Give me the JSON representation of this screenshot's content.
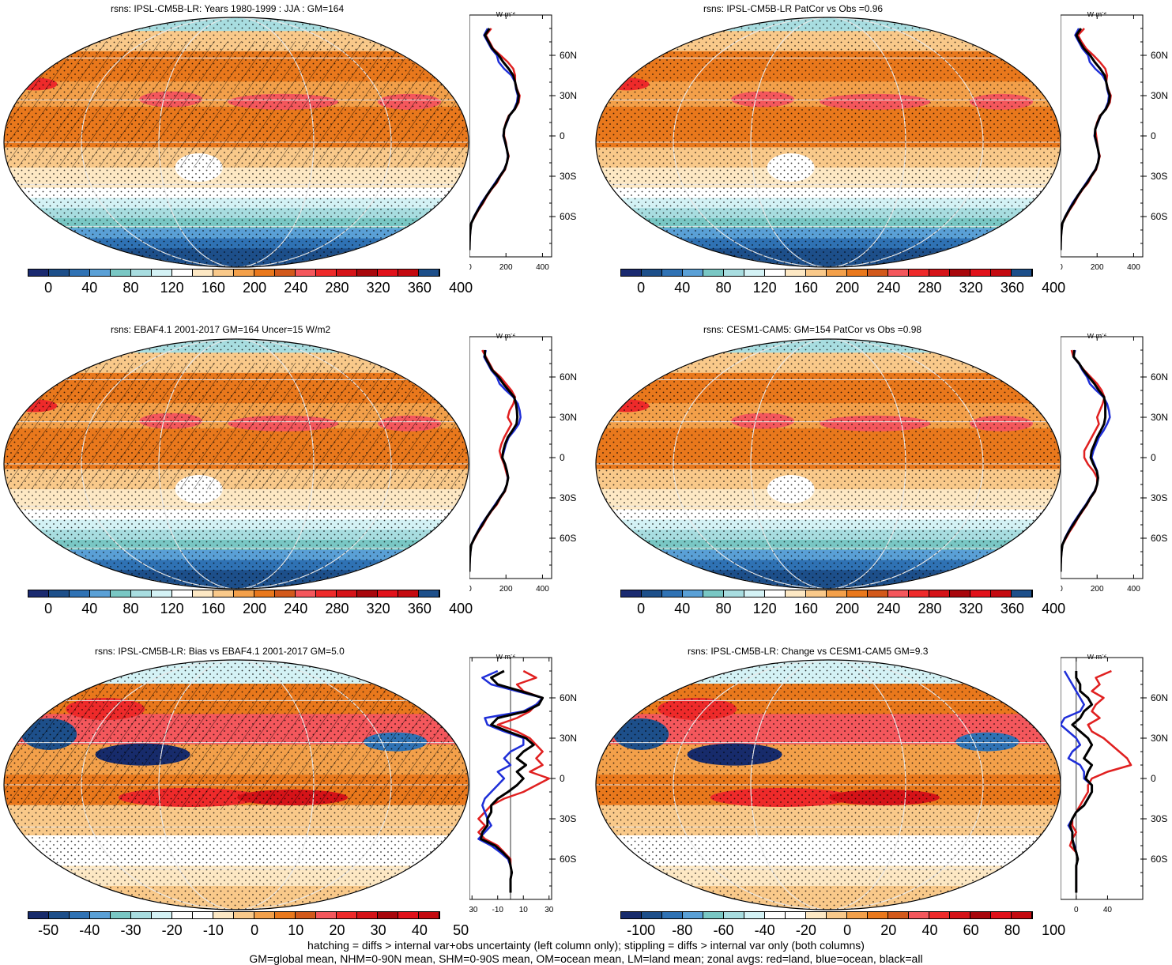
{
  "footer": {
    "line1": "hatching = diffs > internal var+obs uncertainty (left column only); stippling = diffs > internal var only (both columns)",
    "line2": "GM=global mean, NHM=0-90N mean, SHM=0-90S mean, OM=ocean mean, LM=land mean; zonal avgs: red=land, blue=ocean, black=all"
  },
  "colors": {
    "abs_scale": [
      "#1a2a70",
      "#1d4f8a",
      "#2f72b4",
      "#5aa0d6",
      "#79c7c4",
      "#a8dde0",
      "#d4f2f5",
      "#ffffff",
      "#fde8c4",
      "#f9c98a",
      "#f3a04a",
      "#e9781c",
      "#d2591b",
      "#f4575c",
      "#ee2a2a",
      "#d51318",
      "#a8070c",
      "#e1111a",
      "#c40a10",
      "#1d4f8a"
    ],
    "diff_scale": [
      "#172b6b",
      "#1d4f8a",
      "#2f72b4",
      "#5aa0d6",
      "#79c7c4",
      "#a8dde0",
      "#d4f2f5",
      "#ffffff",
      "#ffffff",
      "#fde8c4",
      "#f9c98a",
      "#f3a04a",
      "#e9781c",
      "#d2591b",
      "#f4575c",
      "#ee2a2a",
      "#d51318",
      "#a8070c",
      "#e1111a",
      "#c40a10"
    ],
    "land": "#e02020",
    "ocean": "#1f2fd8",
    "all": "#000000"
  },
  "chart_data": [
    {
      "id": "p1",
      "type": "heatmap",
      "title": "rsns: IPSL-CM5B-LR: Years 1980-1999 : JJA : GM=164",
      "colorbar_ticks": [
        "0",
        "40",
        "80",
        "120",
        "160",
        "200",
        "240",
        "280",
        "320",
        "360",
        "400"
      ],
      "zonal": {
        "unit": "W m",
        "unit_sup": "-2",
        "xticks": [
          "0",
          "200",
          "400"
        ],
        "xlim": [
          0,
          450
        ],
        "yticks": [
          "60N",
          "30N",
          "0",
          "30S",
          "60S"
        ],
        "lat": [
          80,
          75,
          70,
          65,
          60,
          55,
          50,
          45,
          40,
          35,
          30,
          25,
          20,
          15,
          10,
          5,
          0,
          -5,
          -10,
          -15,
          -20,
          -25,
          -30,
          -35,
          -40,
          -45,
          -50,
          -55,
          -60,
          -65,
          -70,
          -75,
          -80,
          -85
        ],
        "land": [
          120,
          90,
          110,
          130,
          170,
          210,
          240,
          250,
          250,
          260,
          275,
          270,
          250,
          215,
          200,
          190,
          190,
          200,
          205,
          215,
          205,
          195,
          170,
          150,
          120,
          95,
          75,
          50,
          30,
          10,
          5,
          2,
          1,
          0
        ],
        "ocean": [
          100,
          80,
          100,
          120,
          150,
          160,
          190,
          230,
          250,
          255,
          265,
          260,
          245,
          220,
          205,
          190,
          185,
          195,
          205,
          210,
          205,
          190,
          165,
          140,
          115,
          90,
          65,
          45,
          25,
          10,
          5,
          2,
          1,
          0
        ],
        "all": [
          110,
          85,
          105,
          125,
          160,
          185,
          215,
          240,
          250,
          258,
          270,
          265,
          248,
          218,
          203,
          190,
          187,
          197,
          205,
          212,
          205,
          192,
          167,
          145,
          117,
          92,
          70,
          47,
          27,
          10,
          5,
          2,
          1,
          0
        ]
      }
    },
    {
      "id": "p2",
      "type": "heatmap",
      "title": "rsns: IPSL-CM5B-LR PatCor vs Obs =0.96",
      "colorbar_ticks": [
        "0",
        "40",
        "80",
        "120",
        "160",
        "200",
        "240",
        "280",
        "320",
        "360",
        "400"
      ],
      "zonal": {
        "unit": "W m",
        "unit_sup": "-2",
        "xticks": [
          "0",
          "200",
          "400"
        ],
        "xlim": [
          0,
          450
        ],
        "yticks": [
          "60N",
          "30N",
          "0",
          "30S",
          "60S"
        ],
        "lat": [
          80,
          75,
          70,
          65,
          60,
          55,
          50,
          45,
          40,
          35,
          30,
          25,
          20,
          15,
          10,
          5,
          0,
          -5,
          -10,
          -15,
          -20,
          -25,
          -30,
          -35,
          -40,
          -45,
          -50,
          -55,
          -60,
          -65,
          -70,
          -75,
          -80,
          -85
        ],
        "land": [
          130,
          95,
          115,
          140,
          180,
          215,
          245,
          255,
          250,
          260,
          275,
          270,
          250,
          215,
          200,
          190,
          195,
          200,
          205,
          215,
          205,
          195,
          170,
          150,
          120,
          95,
          75,
          50,
          30,
          10,
          5,
          2,
          1,
          0
        ],
        "ocean": [
          100,
          80,
          100,
          120,
          150,
          160,
          190,
          230,
          250,
          255,
          265,
          260,
          245,
          220,
          205,
          190,
          185,
          195,
          205,
          210,
          205,
          190,
          165,
          140,
          115,
          90,
          65,
          45,
          25,
          10,
          5,
          2,
          1,
          0
        ],
        "all": [
          112,
          86,
          106,
          128,
          162,
          187,
          217,
          242,
          250,
          258,
          270,
          265,
          248,
          218,
          203,
          190,
          188,
          197,
          205,
          212,
          205,
          192,
          167,
          145,
          117,
          92,
          70,
          47,
          27,
          10,
          5,
          2,
          1,
          0
        ]
      }
    },
    {
      "id": "p3",
      "type": "heatmap",
      "title": "rsns: EBAF4.1 2001-2017 GM=164 Uncer=15 W/m2",
      "colorbar_ticks": [
        "0",
        "40",
        "80",
        "120",
        "160",
        "200",
        "240",
        "280",
        "320",
        "360",
        "400"
      ],
      "zonal": {
        "unit": "W m",
        "unit_sup": "-2",
        "xticks": [
          "0",
          "200",
          "400"
        ],
        "xlim": [
          0,
          450
        ],
        "yticks": [
          "60N",
          "30N",
          "0",
          "30S",
          "60S"
        ],
        "lat": [
          80,
          75,
          70,
          65,
          60,
          55,
          50,
          45,
          40,
          35,
          30,
          25,
          20,
          15,
          10,
          5,
          0,
          -5,
          -10,
          -15,
          -20,
          -25,
          -30,
          -35,
          -40,
          -45,
          -50,
          -55,
          -60,
          -65,
          -70,
          -75,
          -80,
          -85
        ],
        "land": [
          70,
          90,
          110,
          130,
          170,
          200,
          230,
          250,
          240,
          220,
          210,
          230,
          210,
          190,
          175,
          165,
          175,
          190,
          200,
          210,
          205,
          195,
          170,
          150,
          120,
          95,
          75,
          50,
          30,
          10,
          5,
          2,
          1,
          0
        ],
        "ocean": [
          90,
          80,
          100,
          120,
          150,
          165,
          200,
          240,
          265,
          275,
          280,
          270,
          245,
          215,
          200,
          190,
          180,
          195,
          205,
          210,
          205,
          190,
          165,
          140,
          115,
          90,
          65,
          45,
          25,
          10,
          5,
          2,
          1,
          0
        ],
        "all": [
          85,
          85,
          105,
          125,
          160,
          185,
          215,
          245,
          255,
          260,
          262,
          258,
          235,
          210,
          195,
          185,
          180,
          195,
          205,
          212,
          205,
          192,
          167,
          145,
          117,
          92,
          70,
          47,
          27,
          10,
          5,
          2,
          1,
          0
        ]
      }
    },
    {
      "id": "p4",
      "type": "heatmap",
      "title": "rsns: CESM1-CAM5: GM=154 PatCor vs Obs =0.98",
      "colorbar_ticks": [
        "0",
        "40",
        "80",
        "120",
        "160",
        "200",
        "240",
        "280",
        "320",
        "360",
        "400"
      ],
      "zonal": {
        "unit": "W m",
        "unit_sup": "-2",
        "xticks": [
          "0",
          "200",
          "400"
        ],
        "xlim": [
          0,
          450
        ],
        "yticks": [
          "60N",
          "30N",
          "0",
          "30S",
          "60S"
        ],
        "lat": [
          80,
          75,
          70,
          65,
          60,
          55,
          50,
          45,
          40,
          35,
          30,
          25,
          20,
          15,
          10,
          5,
          0,
          -5,
          -10,
          -15,
          -20,
          -25,
          -30,
          -35,
          -40,
          -45,
          -50,
          -55,
          -60,
          -65,
          -70,
          -75,
          -80,
          -85
        ],
        "land": [
          60,
          70,
          100,
          130,
          165,
          200,
          225,
          240,
          230,
          215,
          200,
          210,
          190,
          170,
          150,
          130,
          130,
          150,
          180,
          200,
          200,
          190,
          165,
          145,
          120,
          95,
          75,
          50,
          30,
          10,
          5,
          2,
          1,
          0
        ],
        "ocean": [
          80,
          70,
          100,
          120,
          145,
          160,
          195,
          235,
          255,
          265,
          270,
          255,
          235,
          210,
          195,
          180,
          170,
          185,
          200,
          205,
          200,
          185,
          160,
          138,
          112,
          88,
          63,
          43,
          24,
          10,
          5,
          2,
          1,
          0
        ],
        "all": [
          75,
          72,
          102,
          125,
          155,
          185,
          210,
          238,
          245,
          245,
          245,
          238,
          220,
          200,
          185,
          170,
          165,
          180,
          198,
          205,
          200,
          188,
          163,
          142,
          116,
          92,
          68,
          46,
          26,
          10,
          5,
          2,
          1,
          0
        ]
      }
    },
    {
      "id": "p5",
      "type": "heatmap",
      "title": "rsns: IPSL-CM5B-LR: Bias vs EBAF4.1 2001-2017 GM=5.0",
      "colorbar_ticks": [
        "-50",
        "-40",
        "-30",
        "-20",
        "-10",
        "0",
        "10",
        "20",
        "30",
        "40",
        "50"
      ],
      "zonal": {
        "unit": "W m",
        "unit_sup": "-2",
        "xticks": [
          "-30",
          "-10",
          "10",
          "30"
        ],
        "xlim": [
          -32,
          32
        ],
        "yticks": [
          "60N",
          "30N",
          "0",
          "30S",
          "60S"
        ],
        "lat": [
          80,
          75,
          70,
          65,
          60,
          55,
          50,
          45,
          40,
          35,
          30,
          25,
          20,
          15,
          10,
          5,
          0,
          -5,
          -10,
          -15,
          -20,
          -25,
          -30,
          -35,
          -40,
          -45,
          -50,
          -55,
          -60,
          -65,
          -70,
          -75,
          -80,
          -85
        ],
        "land": [
          10,
          20,
          5,
          10,
          25,
          20,
          15,
          5,
          -10,
          5,
          15,
          20,
          25,
          20,
          25,
          15,
          30,
          20,
          10,
          -5,
          -15,
          -20,
          -25,
          -20,
          -25,
          -20,
          -10,
          -5,
          0,
          0,
          1,
          0,
          0,
          0
        ],
        "ocean": [
          -10,
          -22,
          -15,
          5,
          25,
          20,
          10,
          -20,
          -18,
          -5,
          10,
          10,
          0,
          -5,
          0,
          -10,
          -5,
          -10,
          -15,
          -20,
          -22,
          -20,
          -18,
          -15,
          -20,
          -25,
          -15,
          -8,
          -2,
          0,
          1,
          0,
          0,
          0
        ],
        "all": [
          -5,
          -15,
          -10,
          8,
          25,
          22,
          12,
          -10,
          -15,
          -2,
          12,
          18,
          10,
          5,
          12,
          5,
          10,
          5,
          -2,
          -10,
          -15,
          -15,
          -18,
          -18,
          -22,
          -23,
          -12,
          -6,
          -1,
          0,
          1,
          0,
          0,
          0
        ]
      }
    },
    {
      "id": "p6",
      "type": "heatmap",
      "title": "rsns: IPSL-CM5B-LR: Change vs CESM1-CAM5 GM=9.3",
      "colorbar_ticks": [
        "-100",
        "-80",
        "-60",
        "-40",
        "-20",
        "0",
        "20",
        "40",
        "60",
        "80",
        "100"
      ],
      "zonal": {
        "unit": "W m",
        "unit_sup": "-2",
        "xticks": [
          "0",
          "40"
        ],
        "xlim": [
          -20,
          85
        ],
        "yticks": [
          "60N",
          "30N",
          "0",
          "30S",
          "60S"
        ],
        "lat": [
          80,
          75,
          70,
          65,
          60,
          55,
          50,
          45,
          40,
          35,
          30,
          25,
          20,
          15,
          10,
          5,
          0,
          -5,
          -10,
          -15,
          -20,
          -25,
          -30,
          -35,
          -40,
          -45,
          -50,
          -55,
          -60,
          -65,
          -70,
          -75,
          -80,
          -85
        ],
        "land": [
          45,
          25,
          30,
          20,
          35,
          25,
          20,
          30,
          15,
          20,
          35,
          45,
          55,
          65,
          70,
          40,
          20,
          15,
          15,
          10,
          5,
          0,
          -5,
          -5,
          0,
          -5,
          -8,
          0,
          2,
          0,
          0,
          0,
          0,
          0
        ],
        "ocean": [
          -15,
          -10,
          -5,
          0,
          5,
          10,
          5,
          -15,
          -20,
          -10,
          0,
          5,
          -5,
          -10,
          5,
          10,
          10,
          20,
          20,
          15,
          10,
          0,
          -5,
          -10,
          -5,
          -5,
          -2,
          0,
          2,
          0,
          0,
          0,
          0,
          0
        ],
        "all": [
          0,
          0,
          5,
          5,
          15,
          20,
          10,
          5,
          -5,
          5,
          15,
          20,
          15,
          10,
          20,
          15,
          12,
          20,
          20,
          15,
          10,
          0,
          -5,
          -8,
          -5,
          -5,
          -3,
          0,
          2,
          0,
          0,
          0,
          0,
          0
        ]
      }
    }
  ]
}
